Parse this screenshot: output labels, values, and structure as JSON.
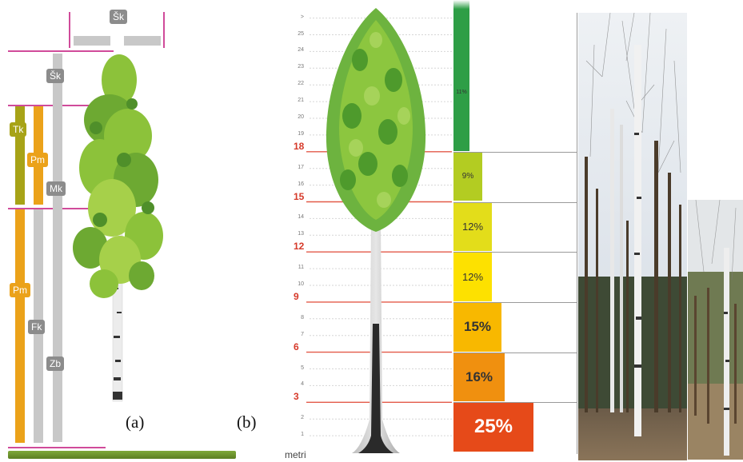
{
  "panel_a": {
    "labels": {
      "sk_top": "Šk",
      "sk": "Šk",
      "tk": "Tk",
      "pm_top": "Pm",
      "mk": "Mk",
      "pm_low": "Pm",
      "fk": "Fk",
      "zb": "Zb"
    },
    "caption": "(a)"
  },
  "panel_b": {
    "caption": "(b)",
    "unit_label": "metri",
    "small_ticks": [
      "1",
      "2",
      "4",
      "5",
      "7",
      "8",
      "10",
      "11",
      "13",
      "14",
      "16",
      "17",
      "19",
      "20",
      "21",
      "22",
      "23",
      "24",
      "25",
      ">"
    ],
    "major_ticks": [
      "3",
      "6",
      "9",
      "12",
      "15",
      "18"
    ],
    "segments": [
      {
        "label": "25%",
        "value": 25,
        "color": "#e64a19"
      },
      {
        "label": "16%",
        "value": 16,
        "color": "#f0900f"
      },
      {
        "label": "15%",
        "value": 15,
        "color": "#f8b800"
      },
      {
        "label": "12%",
        "value": 12,
        "color": "#fde100"
      },
      {
        "label": "12%",
        "value": 12,
        "color": "#e3dd1a"
      },
      {
        "label": "9%",
        "value": 9,
        "color": "#b3cc22"
      },
      {
        "label": "11%",
        "value": 11,
        "color": "#2e9e46"
      }
    ]
  },
  "colors": {
    "pink_line": "#d04b9a",
    "red_line": "#e35a49",
    "grey_bar": "#c8c8c8",
    "orange_bar": "#eba21a",
    "olive_bar": "#a7a317"
  }
}
